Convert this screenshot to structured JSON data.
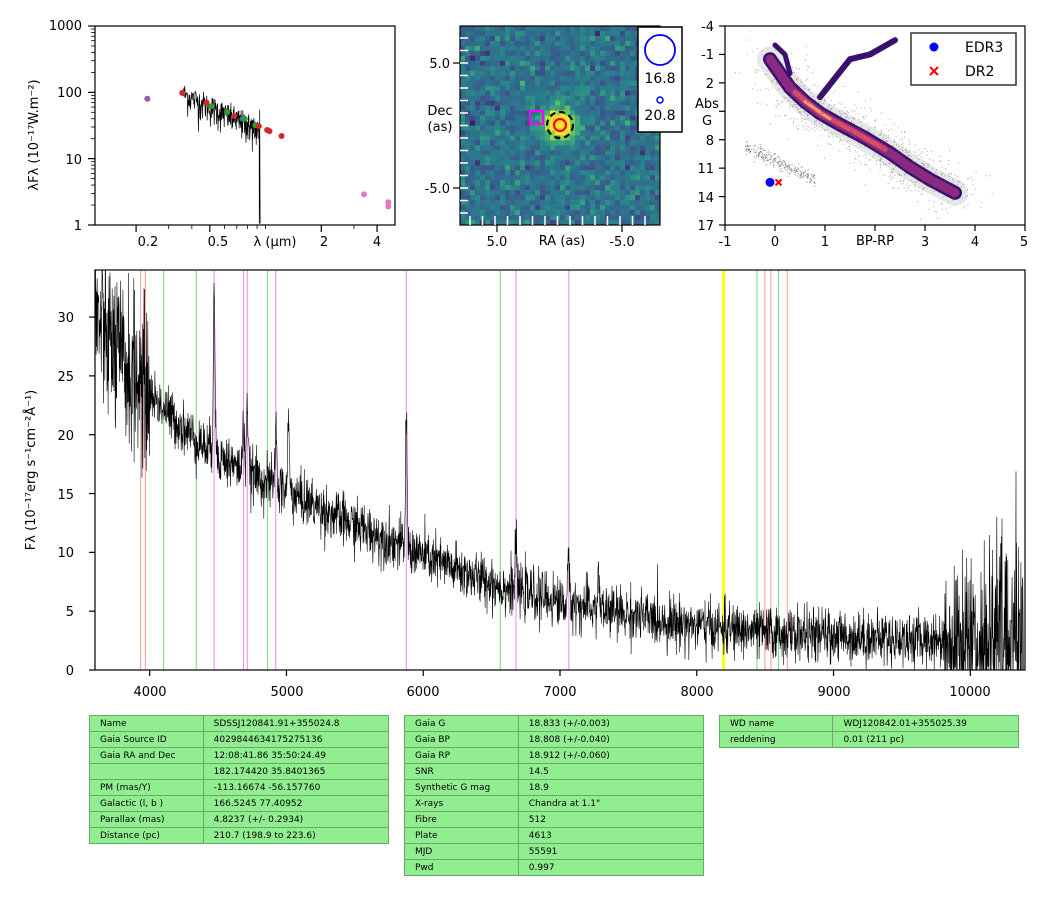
{
  "sed": {
    "ylabel": "λFλ (10⁻¹⁷W.m⁻²)",
    "xlabel": "λ (μm)",
    "yticks": [
      "1000",
      "100",
      "10",
      "1"
    ],
    "xticks": [
      "0.2",
      "0.5",
      "2",
      "4"
    ]
  },
  "image": {
    "xlabel": "RA (as)",
    "ylabel_line1": "Dec",
    "ylabel_line2": "(as)",
    "xticks": [
      "5.0",
      "-5.0"
    ],
    "yticks": [
      "5.0",
      "-5.0"
    ],
    "legend": [
      "16.8",
      "20.8"
    ]
  },
  "hr": {
    "ylabel_line1": "Abs",
    "ylabel_line2": "G",
    "xlabel": "BP-RP",
    "yticks": [
      "-4",
      "-1",
      "2",
      "5",
      "8",
      "11",
      "14",
      "17"
    ],
    "xticks": [
      "-1",
      "0",
      "1",
      "3",
      "4",
      "5"
    ],
    "legend": [
      "EDR3",
      "DR2"
    ]
  },
  "spectrum": {
    "ylabel": "Fλ (10⁻¹⁷erg s⁻¹cm⁻²Å⁻¹)",
    "yticks": [
      "0",
      "5",
      "10",
      "15",
      "20",
      "25",
      "30"
    ],
    "xticks": [
      "4000",
      "5000",
      "6000",
      "7000",
      "8000",
      "9000",
      "10000"
    ]
  },
  "chart_data": [
    {
      "type": "scatter",
      "x_scale": "log",
      "y_scale": "log",
      "xlim": [
        0.12,
        5.0
      ],
      "ylim": [
        1,
        1000
      ],
      "points": [
        {
          "x": 0.23,
          "y": 80,
          "color": "#9b59b6"
        },
        {
          "x": 0.355,
          "y": 98,
          "color": "#d62728"
        },
        {
          "x": 0.48,
          "y": 70,
          "color": "#d62728"
        },
        {
          "x": 0.51,
          "y": 62,
          "color": "#2ca02c"
        },
        {
          "x": 0.62,
          "y": 50,
          "color": "#2ca02c"
        },
        {
          "x": 0.68,
          "y": 44,
          "color": "#d62728"
        },
        {
          "x": 0.75,
          "y": 40,
          "color": "#1f77b4"
        },
        {
          "x": 0.77,
          "y": 40,
          "color": "#2ca02c"
        },
        {
          "x": 0.88,
          "y": 32,
          "color": "#2ca02c"
        },
        {
          "x": 0.92,
          "y": 31,
          "color": "#d62728"
        },
        {
          "x": 1.02,
          "y": 27,
          "color": "#d62728"
        },
        {
          "x": 1.05,
          "y": 26,
          "color": "#d62728"
        },
        {
          "x": 1.22,
          "y": 22,
          "color": "#d62728"
        },
        {
          "x": 3.4,
          "y": 2.9,
          "color": "#e377c2"
        },
        {
          "x": 4.6,
          "y": 2.2,
          "color": "#e377c2"
        },
        {
          "x": 4.6,
          "y": 1.9,
          "color": "#e377c2"
        }
      ]
    },
    {
      "type": "heatmap",
      "xlim": [
        9.0,
        -9.0
      ],
      "ylim": [
        -9.0,
        9.0
      ],
      "markers": [
        {
          "shape": "square",
          "x": 1.2,
          "y": 1.2,
          "color": "#ff00ff"
        },
        {
          "shape": "circle",
          "x": 0.0,
          "y": 0.0,
          "color": "#ff0000"
        },
        {
          "shape": "dashed-circle",
          "x": 0.0,
          "y": 0.0,
          "color": "#000000"
        }
      ]
    },
    {
      "type": "scatter",
      "xlim": [
        -1,
        5
      ],
      "ylim": [
        17,
        -4
      ],
      "series": [
        {
          "name": "EDR3",
          "color": "#0000ff",
          "points": [
            [
              -0.1,
              12.5
            ]
          ]
        },
        {
          "name": "DR2",
          "color": "#ff0000",
          "points": [
            [
              0.07,
              12.5
            ]
          ]
        }
      ]
    },
    {
      "type": "line",
      "xlim": [
        3600,
        10400
      ],
      "ylim": [
        0,
        34
      ],
      "lines": [
        {
          "x": 3934,
          "color": "#ff9999"
        },
        {
          "x": 3968,
          "color": "#ff9999"
        },
        {
          "x": 4102,
          "color": "#77dd77"
        },
        {
          "x": 4340,
          "color": "#77dd77"
        },
        {
          "x": 4471,
          "color": "#ee82ee"
        },
        {
          "x": 4686,
          "color": "#ee82ee"
        },
        {
          "x": 4713,
          "color": "#ee82ee"
        },
        {
          "x": 4861,
          "color": "#77dd77"
        },
        {
          "x": 4922,
          "color": "#ee82ee"
        },
        {
          "x": 5876,
          "color": "#ee82ee"
        },
        {
          "x": 6563,
          "color": "#77dd77"
        },
        {
          "x": 6678,
          "color": "#ee82ee"
        },
        {
          "x": 7065,
          "color": "#ee82ee"
        },
        {
          "x": 8190,
          "color": "#ffff00"
        },
        {
          "x": 8200,
          "color": "#ffff00"
        },
        {
          "x": 8440,
          "color": "#77dd77"
        },
        {
          "x": 8498,
          "color": "#ff9999"
        },
        {
          "x": 8542,
          "color": "#ff9999"
        },
        {
          "x": 8598,
          "color": "#77dd77"
        },
        {
          "x": 8662,
          "color": "#ff9999"
        }
      ],
      "continuum": [
        [
          3600,
          30
        ],
        [
          3800,
          26
        ],
        [
          4000,
          23.5
        ],
        [
          4200,
          21
        ],
        [
          4400,
          19
        ],
        [
          4600,
          17.5
        ],
        [
          4800,
          16.3
        ],
        [
          5000,
          15.2
        ],
        [
          5200,
          14
        ],
        [
          5400,
          12.8
        ],
        [
          5600,
          11.8
        ],
        [
          5800,
          10.8
        ],
        [
          6000,
          9.7
        ],
        [
          6200,
          8.7
        ],
        [
          6400,
          7.8
        ],
        [
          6600,
          7
        ],
        [
          6800,
          6.4
        ],
        [
          7000,
          5.8
        ],
        [
          7200,
          5.3
        ],
        [
          7400,
          4.9
        ],
        [
          7600,
          4.5
        ],
        [
          7800,
          4.1
        ],
        [
          8000,
          3.8
        ],
        [
          8200,
          3.5
        ],
        [
          8400,
          3.3
        ],
        [
          8600,
          3.1
        ],
        [
          8800,
          3.0
        ],
        [
          9000,
          2.9
        ],
        [
          9200,
          2.8
        ],
        [
          9400,
          2.7
        ],
        [
          9600,
          2.6
        ],
        [
          9800,
          2.6
        ],
        [
          10000,
          2.5
        ],
        [
          10200,
          2.5
        ],
        [
          10400,
          2.4
        ]
      ],
      "emission": [
        [
          4471,
          15
        ],
        [
          4686,
          4
        ],
        [
          4713,
          6
        ],
        [
          4922,
          5
        ],
        [
          5015,
          6
        ],
        [
          5876,
          11
        ],
        [
          6678,
          4
        ],
        [
          7065,
          4
        ],
        [
          7281,
          3
        ]
      ]
    }
  ],
  "tables": {
    "left": [
      [
        "Name",
        "SDSSJ120841.91+355024.8"
      ],
      [
        "Gaia Source ID",
        "4029844634175275136"
      ],
      [
        "Gaia RA and Dec",
        "12:08:41.86    35:50:24.49"
      ],
      [
        "",
        "182.174420    35.8401365"
      ],
      [
        "PM (mas/Y)",
        "-113.16674    -56.157760"
      ],
      [
        "Galactic (l, b )",
        "166.5245    77.40952"
      ],
      [
        "Parallax (mas)",
        "4.8237 (+/- 0.2934)"
      ],
      [
        "Distance (pc)",
        "210.7 (198.9 to 223.6)"
      ]
    ],
    "middle": [
      [
        "Gaia G",
        "18.833 (+/-0.003)"
      ],
      [
        "Gaia BP",
        "18.808 (+/-0.040)"
      ],
      [
        "Gaia RP",
        "18.912 (+/-0.060)"
      ],
      [
        "SNR",
        "14.5"
      ],
      [
        "Synthetic G mag",
        "18.9"
      ],
      [
        "X-rays",
        "Chandra at 1.1\""
      ],
      [
        "Fibre",
        "512"
      ],
      [
        "Plate",
        "4613"
      ],
      [
        "MJD",
        "55591"
      ],
      [
        "Pwd",
        "0.997"
      ]
    ],
    "right": [
      [
        "WD name",
        "WDJ120842.01+355025.39"
      ],
      [
        "reddening",
        "0.01 (211 pc)"
      ]
    ]
  }
}
